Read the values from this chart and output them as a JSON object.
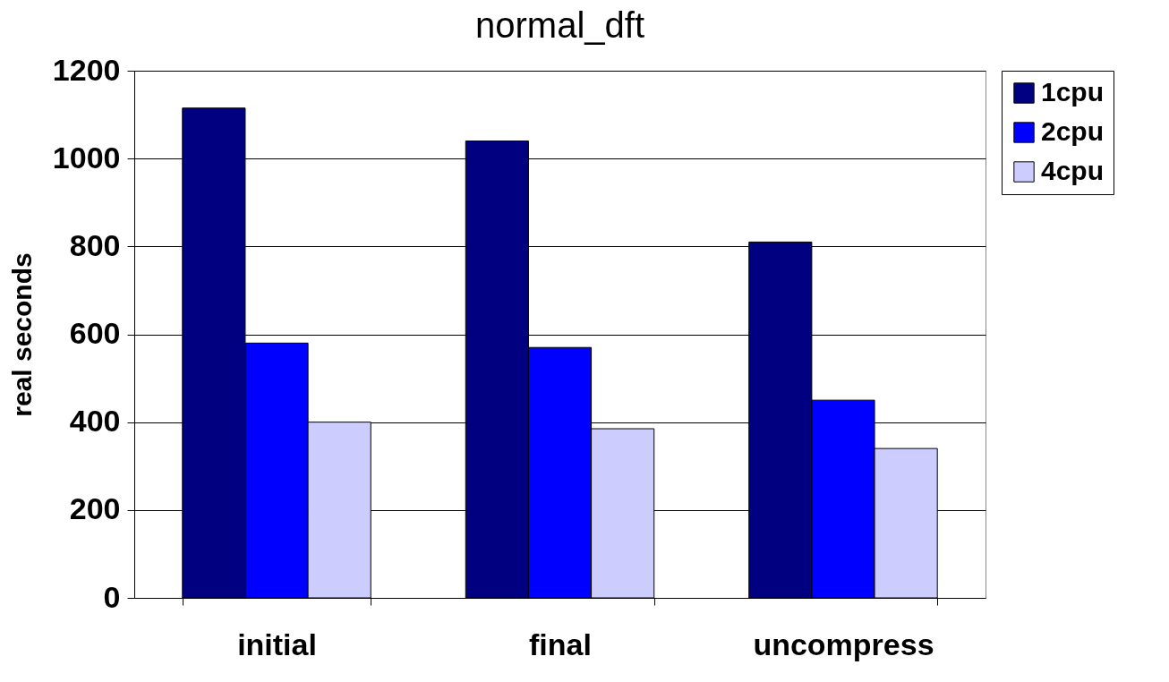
{
  "chart_data": {
    "type": "bar",
    "title": "normal_dft",
    "ylabel": "real seconds",
    "categories": [
      "initial",
      "final",
      "uncompress"
    ],
    "series": [
      {
        "name": "1cpu",
        "color": "#000080",
        "values": [
          1115,
          1040,
          810
        ]
      },
      {
        "name": "2cpu",
        "color": "#0000ff",
        "values": [
          580,
          570,
          450
        ]
      },
      {
        "name": "4cpu",
        "color": "#ccccff",
        "values": [
          400,
          385,
          340
        ]
      }
    ],
    "ylim": [
      0,
      1200
    ],
    "yticks": [
      0,
      200,
      400,
      600,
      800,
      1000,
      1200
    ],
    "grid": "y",
    "legend": "right"
  }
}
